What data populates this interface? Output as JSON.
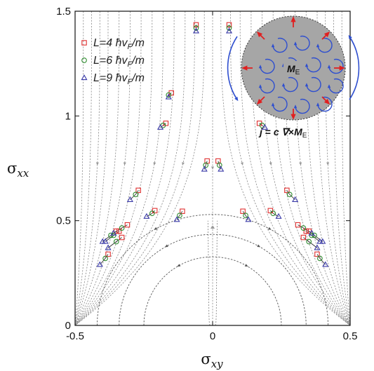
{
  "chart_data": {
    "type": "scatter",
    "title": "",
    "xlabel": "σ",
    "xlabel_sub": "xy",
    "ylabel": "σ",
    "ylabel_sub": "xx",
    "xlim": [
      -0.5,
      0.5
    ],
    "ylim": [
      0,
      1.5
    ],
    "x_ticks": [
      "-0.5",
      "0",
      "0.5"
    ],
    "y_ticks": [
      "0",
      "0.5",
      "1",
      "1.5"
    ],
    "x_tick_values": [
      -0.5,
      0,
      0.5
    ],
    "y_tick_values": [
      0,
      0.5,
      1,
      1.5
    ],
    "legend_position": "top-left",
    "series": [
      {
        "name": "L=4 ħv_F/m",
        "label_parts": [
          "L",
          "=4 ",
          "ħ",
          "v",
          "F",
          "/",
          "m"
        ],
        "marker": "square",
        "color": "#e03030",
        "points": [
          [
            -0.06,
            1.435
          ],
          [
            -0.02,
            0.785
          ],
          [
            -0.15,
            1.11
          ],
          [
            -0.17,
            0.965
          ],
          [
            -0.27,
            0.645
          ],
          [
            -0.21,
            0.548
          ],
          [
            -0.11,
            0.545
          ],
          [
            -0.31,
            0.48
          ],
          [
            -0.34,
            0.45
          ],
          [
            -0.33,
            0.42
          ],
          [
            -0.38,
            0.34
          ],
          [
            -0.35,
            0.45
          ],
          [
            0.06,
            1.435
          ],
          [
            0.02,
            0.785
          ],
          [
            0.15,
            1.11
          ],
          [
            0.17,
            0.965
          ],
          [
            0.27,
            0.645
          ],
          [
            0.21,
            0.548
          ],
          [
            0.11,
            0.545
          ],
          [
            0.31,
            0.48
          ],
          [
            0.34,
            0.45
          ],
          [
            0.33,
            0.42
          ],
          [
            0.38,
            0.34
          ],
          [
            0.35,
            0.45
          ]
        ]
      },
      {
        "name": "L=6 ħv_F/m",
        "label_parts": [
          "L",
          "=6 ",
          "ħ",
          "v",
          "F",
          "/",
          "m"
        ],
        "marker": "circle",
        "color": "#2e8b2e",
        "points": [
          [
            -0.06,
            1.42
          ],
          [
            -0.025,
            0.765
          ],
          [
            -0.16,
            1.1
          ],
          [
            -0.18,
            0.955
          ],
          [
            -0.28,
            0.625
          ],
          [
            -0.22,
            0.535
          ],
          [
            -0.12,
            0.525
          ],
          [
            -0.33,
            0.465
          ],
          [
            -0.36,
            0.43
          ],
          [
            -0.35,
            0.4
          ],
          [
            -0.39,
            0.32
          ],
          [
            -0.37,
            0.43
          ],
          [
            0.06,
            1.42
          ],
          [
            0.025,
            0.765
          ],
          [
            0.16,
            1.1
          ],
          [
            0.18,
            0.955
          ],
          [
            0.28,
            0.625
          ],
          [
            0.22,
            0.535
          ],
          [
            0.12,
            0.525
          ],
          [
            0.33,
            0.465
          ],
          [
            0.36,
            0.43
          ],
          [
            0.35,
            0.4
          ],
          [
            0.39,
            0.32
          ],
          [
            0.37,
            0.43
          ]
        ]
      },
      {
        "name": "L=9 ħv_F/m",
        "label_parts": [
          "L",
          "=9 ",
          "ħ",
          "v",
          "F",
          "/",
          "m"
        ],
        "marker": "triangle",
        "color": "#3a3aa8",
        "points": [
          [
            -0.06,
            1.405
          ],
          [
            -0.03,
            0.745
          ],
          [
            -0.16,
            1.09
          ],
          [
            -0.19,
            0.945
          ],
          [
            -0.3,
            0.6
          ],
          [
            -0.24,
            0.52
          ],
          [
            -0.13,
            0.505
          ],
          [
            -0.36,
            0.44
          ],
          [
            -0.39,
            0.4
          ],
          [
            -0.38,
            0.37
          ],
          [
            -0.41,
            0.29
          ],
          [
            -0.4,
            0.4
          ],
          [
            0.06,
            1.405
          ],
          [
            0.03,
            0.745
          ],
          [
            0.16,
            1.09
          ],
          [
            0.19,
            0.945
          ],
          [
            0.3,
            0.6
          ],
          [
            0.24,
            0.52
          ],
          [
            0.13,
            0.505
          ],
          [
            0.36,
            0.44
          ],
          [
            0.39,
            0.4
          ],
          [
            0.38,
            0.37
          ],
          [
            0.41,
            0.29
          ],
          [
            0.4,
            0.4
          ]
        ]
      }
    ],
    "inset": {
      "moment_label": "M",
      "moment_sub": "E",
      "current_eq": [
        "j",
        " = ",
        "c",
        " ∇",
        "×",
        "M",
        "E"
      ],
      "fill_color": "#a6a6a6",
      "vortex_color": "#2f4fcf",
      "arrow_color": "#e02020"
    }
  }
}
